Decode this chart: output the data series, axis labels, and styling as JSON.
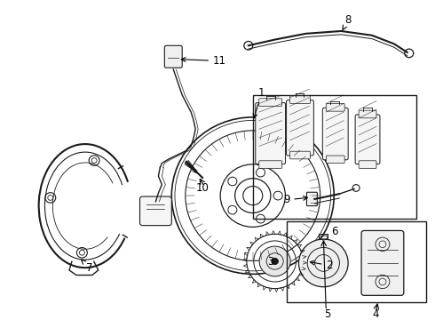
{
  "bg_color": "#ffffff",
  "line_color": "#1a1a1a",
  "fig_width": 4.9,
  "fig_height": 3.6,
  "dpi": 100,
  "label_fontsize": 8.5
}
